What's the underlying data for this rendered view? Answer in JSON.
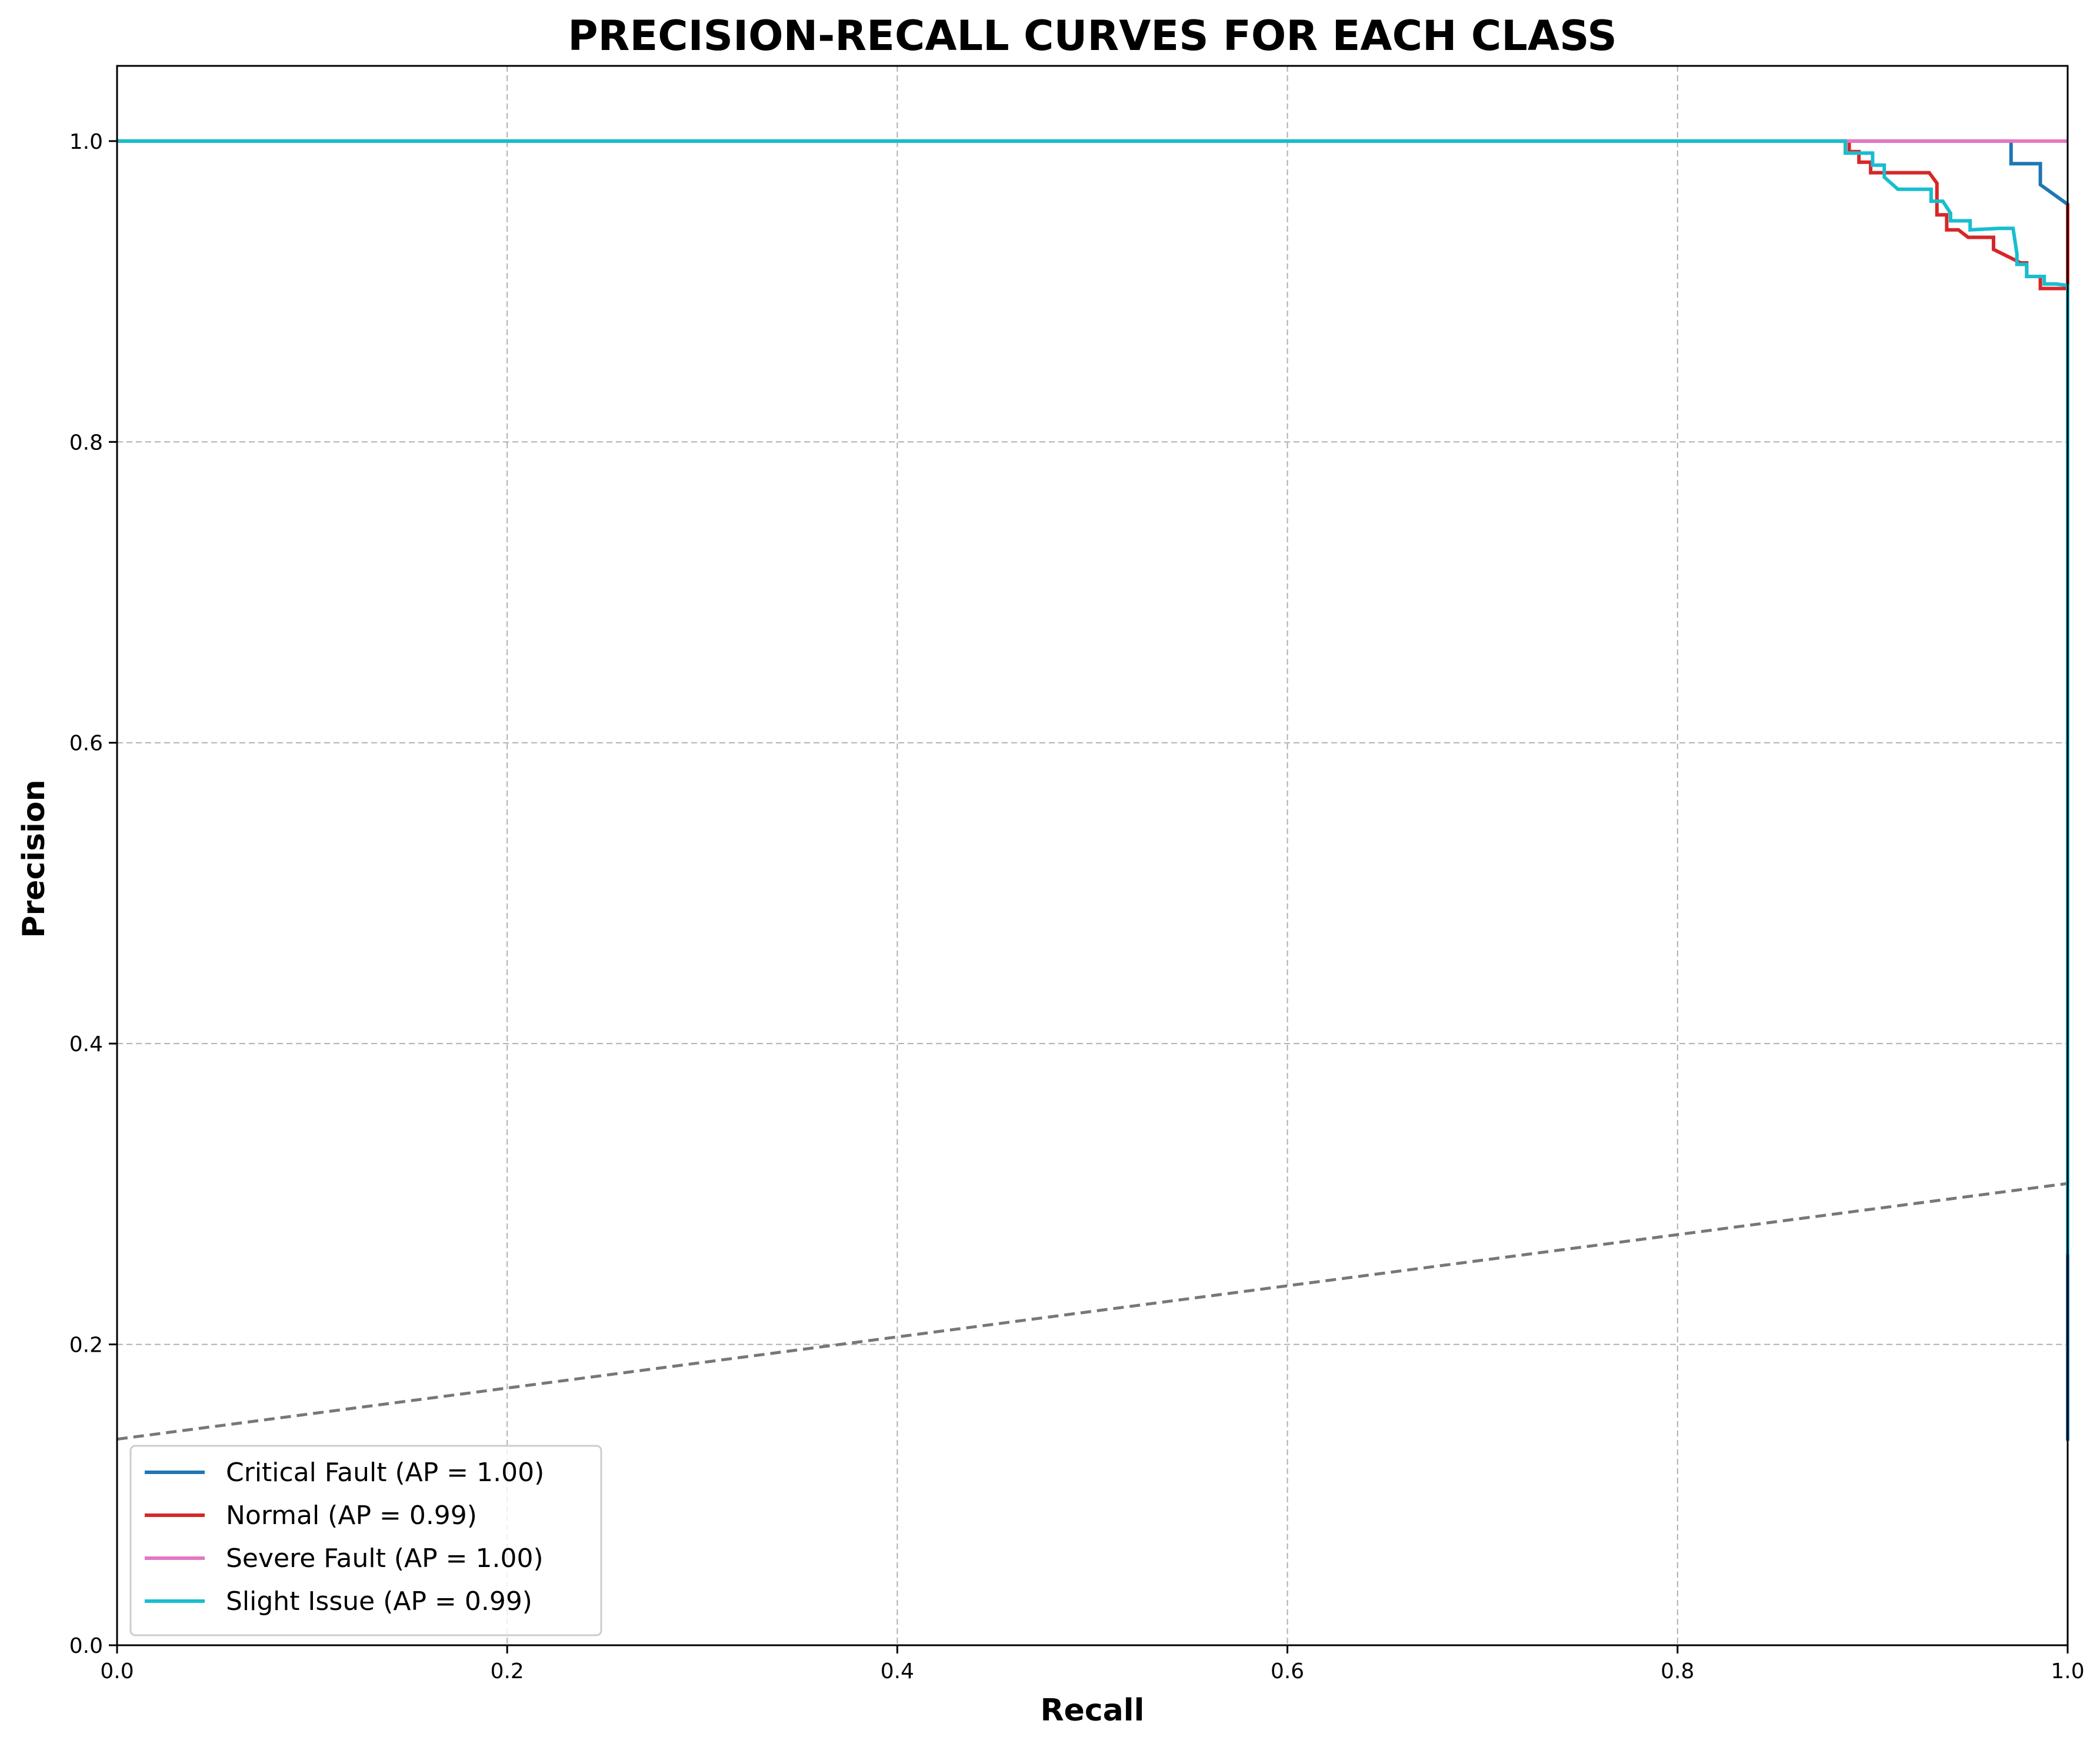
{
  "chart_data": {
    "type": "line",
    "title": "PRECISION-RECALL CURVES FOR EACH CLASS",
    "xlabel": "Recall",
    "ylabel": "Precision",
    "xlim": [
      0.0,
      1.0
    ],
    "ylim": [
      0.0,
      1.05
    ],
    "xticks": [
      "0.0",
      "0.2",
      "0.4",
      "0.6",
      "0.8",
      "1.0"
    ],
    "yticks": [
      "0.0",
      "0.2",
      "0.4",
      "0.6",
      "0.8",
      "1.0"
    ],
    "grid": true,
    "legend_position": "lower-left",
    "series": [
      {
        "name": "Critical Fault (AP = 1.00)",
        "color": "#1f77b4",
        "points": [
          [
            0.0,
            1.0
          ],
          [
            0.971,
            1.0
          ],
          [
            0.971,
            0.985
          ],
          [
            0.986,
            0.985
          ],
          [
            0.986,
            0.971
          ],
          [
            1.0,
            0.958
          ],
          [
            1.0,
            0.136
          ]
        ]
      },
      {
        "name": "Normal (AP = 0.99)",
        "color": "#d62728",
        "points": [
          [
            0.0,
            1.0
          ],
          [
            0.888,
            1.0
          ],
          [
            0.888,
            0.993
          ],
          [
            0.893,
            0.993
          ],
          [
            0.893,
            0.986
          ],
          [
            0.899,
            0.986
          ],
          [
            0.899,
            0.979
          ],
          [
            0.929,
            0.979
          ],
          [
            0.933,
            0.972
          ],
          [
            0.933,
            0.951
          ],
          [
            0.938,
            0.951
          ],
          [
            0.938,
            0.941
          ],
          [
            0.944,
            0.941
          ],
          [
            0.949,
            0.936
          ],
          [
            0.962,
            0.936
          ],
          [
            0.962,
            0.928
          ],
          [
            0.976,
            0.919
          ],
          [
            0.979,
            0.919
          ],
          [
            0.979,
            0.91
          ],
          [
            0.986,
            0.91
          ],
          [
            0.986,
            0.902
          ],
          [
            1.0,
            0.902
          ],
          [
            1.0,
            0.958
          ]
        ]
      },
      {
        "name": "Severe Fault (AP = 1.00)",
        "color": "#e377c2",
        "points": [
          [
            0.0,
            1.0
          ],
          [
            1.0,
            1.0
          ]
        ]
      },
      {
        "name": "Slight Issue (AP = 0.99)",
        "color": "#17becf",
        "points": [
          [
            0.0,
            1.0
          ],
          [
            0.886,
            1.0
          ],
          [
            0.886,
            0.992
          ],
          [
            0.9,
            0.992
          ],
          [
            0.9,
            0.984
          ],
          [
            0.906,
            0.984
          ],
          [
            0.906,
            0.976
          ],
          [
            0.913,
            0.968
          ],
          [
            0.93,
            0.968
          ],
          [
            0.93,
            0.96
          ],
          [
            0.936,
            0.96
          ],
          [
            0.94,
            0.952
          ],
          [
            0.94,
            0.947
          ],
          [
            0.95,
            0.947
          ],
          [
            0.95,
            0.941
          ],
          [
            0.965,
            0.942
          ],
          [
            0.972,
            0.942
          ],
          [
            0.974,
            0.925
          ],
          [
            0.974,
            0.918
          ],
          [
            0.979,
            0.918
          ],
          [
            0.979,
            0.91
          ],
          [
            0.988,
            0.91
          ],
          [
            0.988,
            0.905
          ],
          [
            0.994,
            0.905
          ],
          [
            1.0,
            0.904
          ],
          [
            1.0,
            0.26
          ]
        ]
      }
    ],
    "baseline": {
      "color": "#777777",
      "style": "dashed",
      "points": [
        [
          0.0,
          0.137
        ],
        [
          1.0,
          0.307
        ]
      ]
    }
  }
}
